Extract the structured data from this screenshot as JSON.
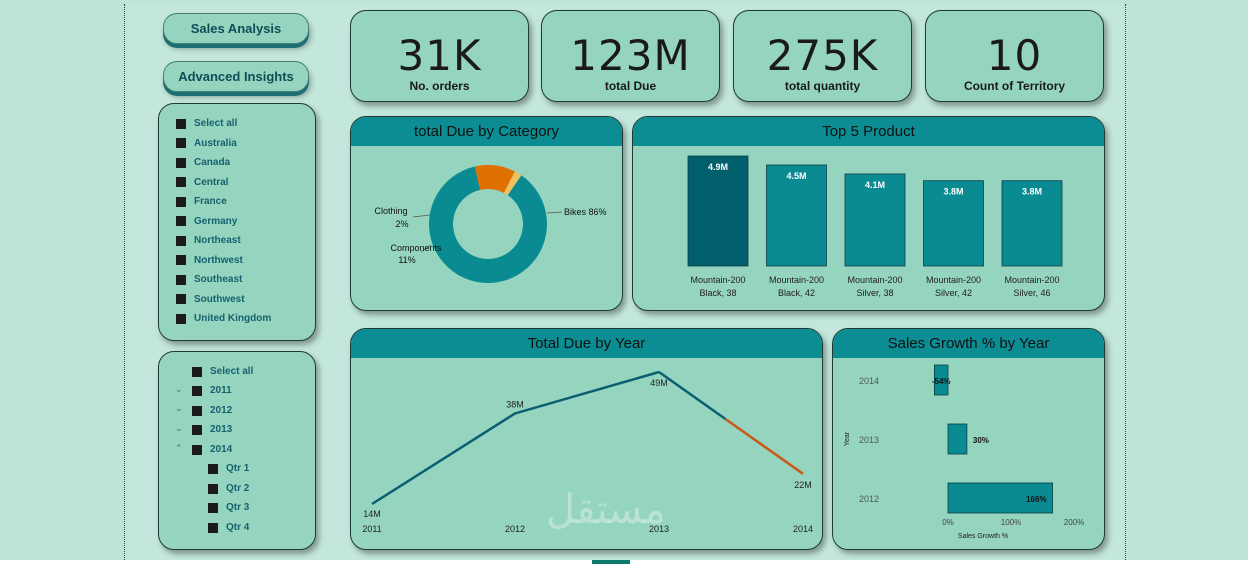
{
  "nav": {
    "sales_analysis": "Sales Analysis",
    "advanced_insights": "Advanced Insights"
  },
  "kpis": [
    {
      "value": "31K",
      "label": "No. orders"
    },
    {
      "value": "123M",
      "label": "total Due"
    },
    {
      "value": "275K",
      "label": "total quantity"
    },
    {
      "value": "10",
      "label": "Count of Territory"
    }
  ],
  "territory_slicer": {
    "items": [
      "Select all",
      "Australia",
      "Canada",
      "Central",
      "France",
      "Germany",
      "Northeast",
      "Northwest",
      "Southeast",
      "Southwest",
      "United Kingdom"
    ]
  },
  "date_slicer": {
    "select_all": "Select all",
    "years": [
      "2011",
      "2012",
      "2013",
      "2014"
    ],
    "quarters": [
      "Qtr 1",
      "Qtr 2",
      "Qtr 3",
      "Qtr 4"
    ]
  },
  "colors": {
    "accent": "#0c8d93",
    "dark_bar": "#005f6b",
    "bar": "#0a8b91",
    "orange": "#e07000",
    "line": "#0b5e72",
    "line_forecast": "#c75a1a",
    "card_bg": "#95d4bf"
  },
  "chart_data": [
    {
      "type": "pie",
      "title": "total Due by Category",
      "labels": [
        "Bikes",
        "Components",
        "Clothing"
      ],
      "values": [
        86,
        11,
        2
      ],
      "label_texts": [
        "Bikes 86%",
        "Components",
        "11%",
        "Clothing",
        "2%"
      ],
      "colors": [
        "#0a8b91",
        "#e07000",
        "#f0c060"
      ]
    },
    {
      "type": "bar",
      "title": "Top 5 Product",
      "categories": [
        "Mountain-200 Black, 38",
        "Mountain-200 Black, 42",
        "Mountain-200 Silver, 38",
        "Mountain-200 Silver, 42",
        "Mountain-200 Silver, 46"
      ],
      "category_lines": [
        [
          "Mountain-200",
          "Black, 38"
        ],
        [
          "Mountain-200",
          "Black, 42"
        ],
        [
          "Mountain-200",
          "Silver, 38"
        ],
        [
          "Mountain-200",
          "Silver, 42"
        ],
        [
          "Mountain-200",
          "Silver, 46"
        ]
      ],
      "values": [
        4.9,
        4.5,
        4.1,
        3.8,
        3.8
      ],
      "data_labels": [
        "4.9M",
        "4.5M",
        "4.1M",
        "3.8M",
        "3.8M"
      ],
      "unit": "M"
    },
    {
      "type": "line",
      "title": "Total Due by Year",
      "x": [
        "2011",
        "2012",
        "2013",
        "2014"
      ],
      "values": [
        14,
        38,
        49,
        22
      ],
      "data_labels": [
        "14M",
        "38M",
        "49M",
        "22M"
      ],
      "unit": "M"
    },
    {
      "type": "bar",
      "orientation": "horizontal",
      "title": "Sales Growth % by Year",
      "categories": [
        "2014",
        "2013",
        "2012"
      ],
      "values": [
        -54,
        30,
        166
      ],
      "data_labels": [
        "-54%",
        "30%",
        "166%"
      ],
      "xlabel": "Sales Growth %",
      "ylabel": "Year",
      "x_ticks": [
        "0%",
        "100%",
        "200%"
      ]
    }
  ],
  "watermark": "مستقل"
}
